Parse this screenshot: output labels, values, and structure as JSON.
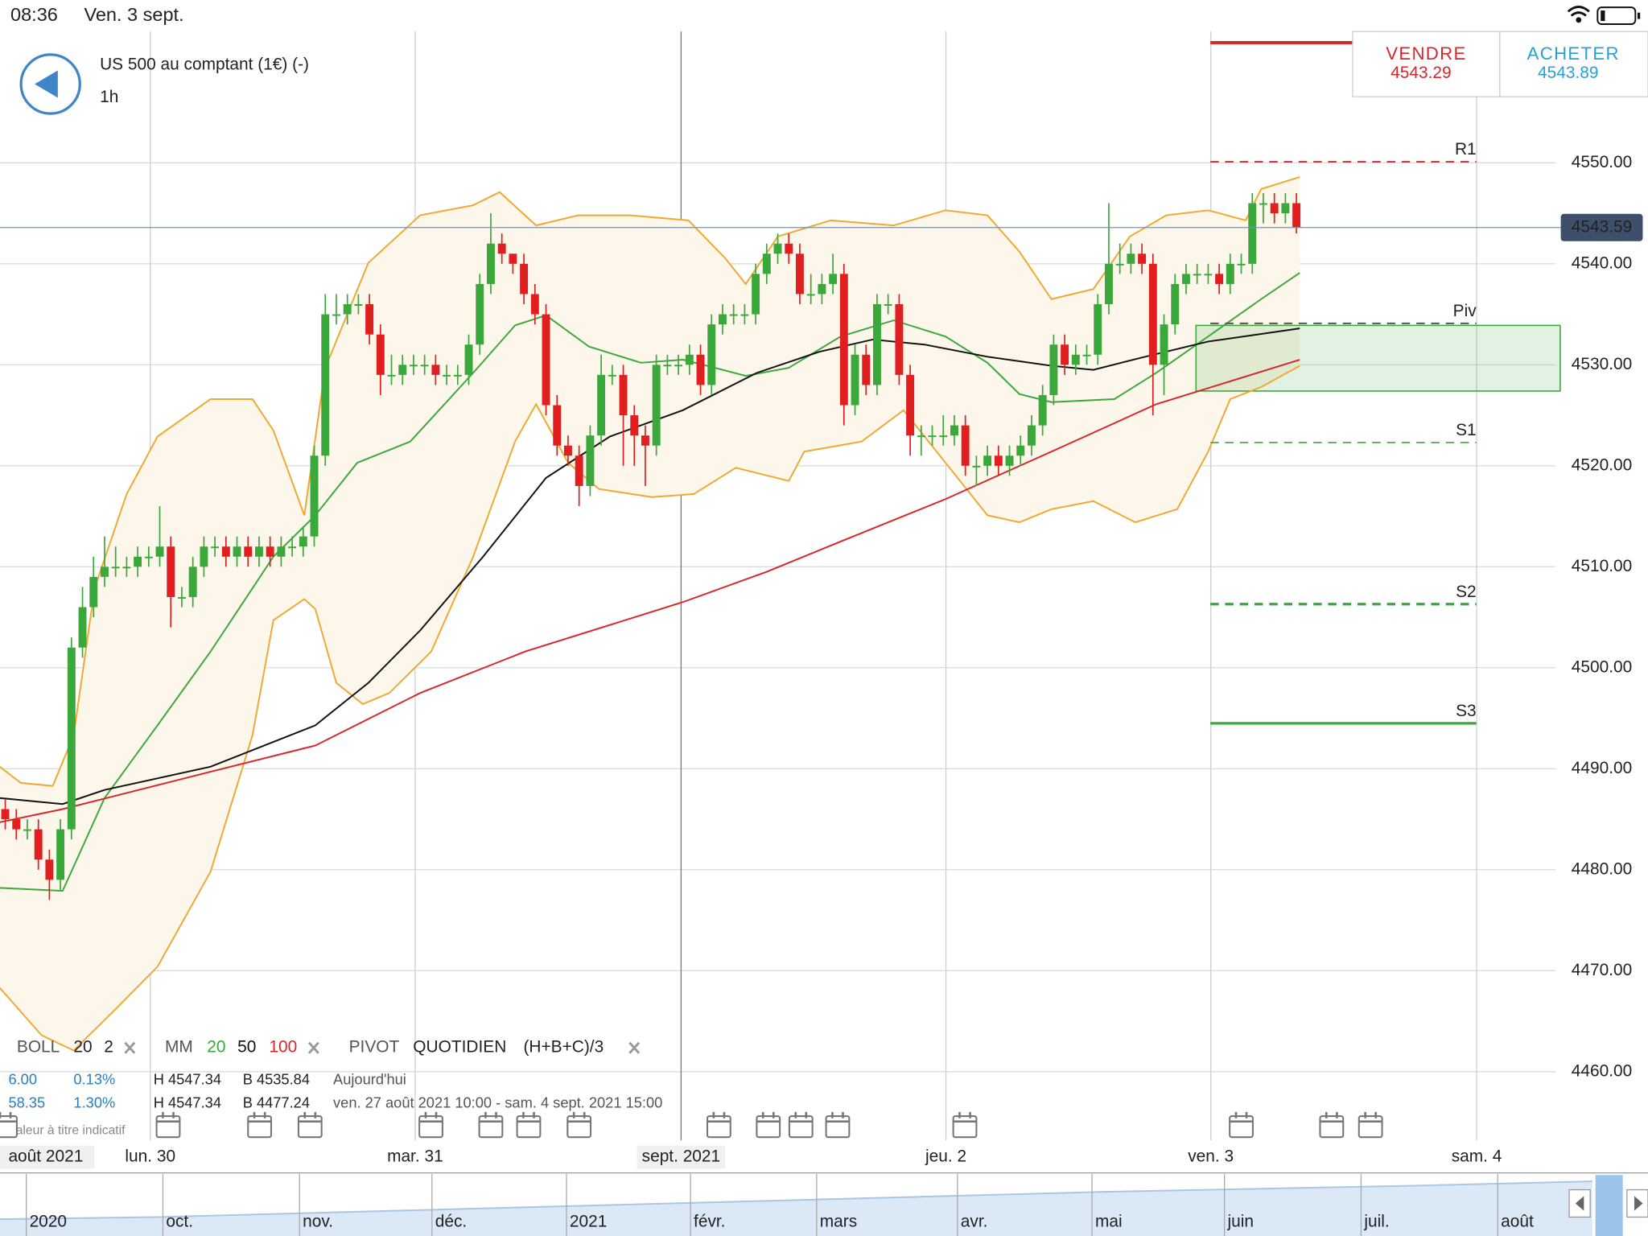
{
  "status_bar": {
    "time": "08:36",
    "date": "Ven. 3 sept."
  },
  "header": {
    "instrument": "US 500 au comptant (1€) (-)",
    "timeframe": "1h"
  },
  "quote": {
    "sell_label": "VENDRE",
    "sell_price": "4543.29",
    "buy_label": "ACHETER",
    "buy_price": "4543.89"
  },
  "chart_data": {
    "type": "candlestick",
    "x_start_label": "août 2021",
    "xlim": [
      -0.476,
      148.857
    ],
    "ylim": [
      4453.2,
      4563.0
    ],
    "grid": true,
    "yticks": [
      {
        "value": 4460,
        "label": "4460.00"
      },
      {
        "value": 4470,
        "label": "4470.00"
      },
      {
        "value": 4480,
        "label": "4480.00"
      },
      {
        "value": 4490,
        "label": "4490.00"
      },
      {
        "value": 4500,
        "label": "4500.00"
      },
      {
        "value": 4510,
        "label": "4510.00"
      },
      {
        "value": 4520,
        "label": "4520.00"
      },
      {
        "value": 4530,
        "label": "4530.00"
      },
      {
        "value": 4540,
        "label": "4540.00"
      },
      {
        "value": 4550,
        "label": "4550.00"
      }
    ],
    "xticks": [
      {
        "value": 13.14,
        "label": "lun. 30"
      },
      {
        "value": 37.14,
        "label": "mar. 31"
      },
      {
        "value": 61.24,
        "label": "sept. 2021"
      },
      {
        "value": 85.24,
        "label": "jeu. 2"
      },
      {
        "value": 109.24,
        "label": "ven. 3"
      },
      {
        "value": 133.33,
        "label": "sam. 4"
      }
    ],
    "up_color": "#3aa83a",
    "down_color": "#e02020",
    "open": [
      4486,
      4485,
      4484,
      4484,
      4481,
      4479,
      4484,
      4502,
      4506,
      4509,
      4510,
      4510,
      4510,
      4511,
      4511,
      4512,
      4507,
      4507,
      4510,
      4512,
      4512,
      4511,
      4512,
      4511,
      4512,
      4511,
      4512,
      4512,
      4513,
      4521,
      4535,
      4535,
      4536,
      4536,
      4533,
      4529,
      4529,
      4530,
      4530,
      4530,
      4529,
      4529,
      4529,
      4532,
      4538,
      4542,
      4541,
      4540,
      4537,
      4535,
      4526,
      4522,
      4521,
      4518,
      4523,
      4529,
      4529,
      4525,
      4523,
      4522,
      4530,
      4530,
      4530,
      4531,
      4528,
      4534,
      4535,
      4535,
      4535,
      4539,
      4541,
      4542,
      4541,
      4537,
      4537,
      4538,
      4539,
      4526,
      4531,
      4528,
      4536,
      4536,
      4529,
      4523,
      4523,
      4523,
      4523,
      4524,
      4520,
      4520,
      4521,
      4520,
      4521,
      4522,
      4524,
      4527,
      4532,
      4530,
      4531,
      4531,
      4536,
      4540,
      4540,
      4541,
      4540,
      4530,
      4534,
      4538,
      4539,
      4539,
      4539,
      4538,
      4540,
      4540,
      4546,
      4546,
      4545,
      4546
    ],
    "high": [
      4487,
      4486,
      4485,
      4485,
      4482,
      4485,
      4503,
      4508,
      4511,
      4513,
      4512,
      4511,
      4512,
      4512,
      4516,
      4513,
      4508,
      4511,
      4513,
      4513,
      4513,
      4513,
      4513,
      4513,
      4513,
      4513,
      4513,
      4514,
      4522,
      4537,
      4537,
      4537,
      4537,
      4537,
      4534,
      4531,
      4531,
      4531,
      4531,
      4531,
      4530,
      4530,
      4533,
      4539,
      4545,
      4543,
      4541,
      4541,
      4538,
      4536,
      4527,
      4523,
      4522,
      4524,
      4531,
      4530,
      4530,
      4526,
      4524,
      4531,
      4531,
      4531,
      4532,
      4532,
      4535,
      4536,
      4536,
      4536,
      4540,
      4542,
      4543,
      4543,
      4542,
      4539,
      4539,
      4541,
      4540,
      4532,
      4532,
      4537,
      4537,
      4537,
      4530,
      4524,
      4524,
      4525,
      4525,
      4525,
      4521,
      4522,
      4522,
      4522,
      4523,
      4525,
      4528,
      4533,
      4533,
      4532,
      4532,
      4537,
      4546,
      4542,
      4542,
      4542,
      4541,
      4535,
      4539,
      4540,
      4540,
      4540,
      4540,
      4541,
      4541,
      4547,
      4547,
      4547,
      4547,
      4547
    ],
    "low": [
      4484,
      4483,
      4483,
      4480,
      4477,
      4478,
      4483,
      4501,
      4505,
      4508,
      4509,
      4509,
      4509,
      4510,
      4510,
      4504,
      4506,
      4506,
      4509,
      4511,
      4510,
      4510,
      4510,
      4510,
      4510,
      4510,
      4511,
      4511,
      4512,
      4520,
      4534,
      4534,
      4535,
      4532,
      4527,
      4528,
      4528,
      4529,
      4529,
      4528,
      4528,
      4528,
      4528,
      4531,
      4537,
      4540,
      4539,
      4536,
      4534,
      4525,
      4521,
      4520,
      4516,
      4517,
      4522,
      4528,
      4520,
      4520,
      4518,
      4521,
      4529,
      4529,
      4529,
      4527,
      4527,
      4533,
      4534,
      4534,
      4534,
      4538,
      4540,
      4540,
      4536,
      4536,
      4536,
      4537,
      4524,
      4525,
      4527,
      4527,
      4535,
      4528,
      4521,
      4521,
      4522,
      4522,
      4522,
      4519,
      4518,
      4519,
      4519,
      4519,
      4520,
      4521,
      4523,
      4526,
      4529,
      4529,
      4530,
      4530,
      4535,
      4539,
      4539,
      4539,
      4525,
      4527,
      4533,
      4537,
      4538,
      4538,
      4537,
      4537,
      4539,
      4539,
      4544,
      4544,
      4544,
      4543
    ],
    "close": [
      4485,
      4484,
      4484,
      4481,
      4479,
      4484,
      4502,
      4506,
      4509,
      4510,
      4510,
      4510,
      4511,
      4511,
      4512,
      4507,
      4507,
      4510,
      4512,
      4512,
      4511,
      4512,
      4511,
      4512,
      4511,
      4512,
      4512,
      4513,
      4521,
      4535,
      4535,
      4536,
      4536,
      4533,
      4529,
      4529,
      4530,
      4530,
      4530,
      4529,
      4529,
      4529,
      4532,
      4538,
      4542,
      4541,
      4540,
      4537,
      4535,
      4526,
      4522,
      4521,
      4518,
      4523,
      4529,
      4529,
      4525,
      4523,
      4522,
      4530,
      4530,
      4530,
      4531,
      4528,
      4534,
      4535,
      4535,
      4535,
      4539,
      4541,
      4542,
      4541,
      4537,
      4537,
      4538,
      4539,
      4526,
      4531,
      4528,
      4536,
      4536,
      4529,
      4523,
      4523,
      4523,
      4523,
      4524,
      4520,
      4520,
      4521,
      4520,
      4521,
      4522,
      4524,
      4527,
      4532,
      4530,
      4531,
      4531,
      4536,
      4540,
      4540,
      4541,
      4540,
      4530,
      4534,
      4538,
      4539,
      4539,
      4539,
      4538,
      4540,
      4540,
      4546,
      4546,
      4545,
      4546,
      4543.59
    ],
    "bollinger": {
      "color": "#f0a830",
      "fill": "#fdf6ea",
      "upper": {
        "x": [
          -0.5,
          1.4,
          4.3,
          6.2,
          8.1,
          11,
          13.8,
          18.6,
          22.4,
          24.3,
          27.1,
          29,
          32.9,
          37.6,
          42.4,
          44.8,
          48.1,
          51.9,
          56.7,
          61.9,
          65.2,
          67.1,
          70,
          74.8,
          80.5,
          85.2,
          89,
          91.9,
          94.8,
          98.6,
          101.9,
          105.2,
          109,
          112.4,
          113.8,
          117.3
        ],
        "values": [
          4490.2,
          4488.6,
          4488.3,
          4493.3,
          4507.9,
          4517.2,
          4522.9,
          4526.6,
          4526.6,
          4523.5,
          4515.1,
          4529.7,
          4540.1,
          4544.8,
          4545.8,
          4547.1,
          4543.8,
          4544.8,
          4544.8,
          4544.3,
          4540.6,
          4538,
          4542.7,
          4544.3,
          4543.8,
          4545.3,
          4544.8,
          4541.2,
          4536.5,
          4537.5,
          4542.7,
          4544.8,
          4545.3,
          4544.3,
          4547.4,
          4548.6
        ]
      },
      "lower": {
        "x": [
          -0.5,
          3.3,
          6.2,
          10,
          13.8,
          18.6,
          22.4,
          24.3,
          27.1,
          28.1,
          30,
          32.4,
          34.8,
          38.6,
          42.4,
          46.2,
          48.1,
          51,
          53.8,
          58.6,
          62.4,
          66.2,
          71,
          72.4,
          77.6,
          81.4,
          85.2,
          89,
          91.9,
          94.8,
          98.6,
          102.4,
          106.2,
          109,
          111,
          113.8,
          117.3
        ],
        "values": [
          4468.3,
          4463.6,
          4462.1,
          4466.2,
          4470.4,
          4479.8,
          4493.3,
          4504.7,
          4506.8,
          4505.8,
          4498.5,
          4496.4,
          4497.5,
          4501.6,
          4511,
          4522.4,
          4526.1,
          4520.3,
          4517.7,
          4516.9,
          4517.2,
          4519.8,
          4518.5,
          4521.4,
          4522.4,
          4525.5,
          4520.3,
          4515.1,
          4514.4,
          4515.7,
          4516.5,
          4514.4,
          4515.7,
          4521.4,
          4526.6,
          4527.8,
          4529.9
        ]
      }
    },
    "series": [
      {
        "color": "#3aa83a",
        "x": [
          -0.5,
          5.2,
          9,
          13.8,
          18.6,
          24.3,
          28.1,
          31.9,
          36.7,
          42.4,
          46.2,
          49,
          52.9,
          57.6,
          61.4,
          64.3,
          67.1,
          71,
          75.7,
          80.5,
          85.2,
          89,
          91.9,
          94.8,
          100.5,
          104.3,
          109,
          113.8,
          117.3
        ],
        "values": [
          4478.2,
          4477.9,
          4487.1,
          4494.3,
          4501.6,
          4511,
          4515.1,
          4520.3,
          4522.4,
          4529.2,
          4533.9,
          4534.9,
          4531.8,
          4530.2,
          4530.5,
          4529.7,
          4528.9,
          4529.7,
          4532.8,
          4534.4,
          4532.8,
          4530.2,
          4527.1,
          4526.3,
          4526.6,
          4529.2,
          4532.8,
          4536.5,
          4539.1
        ]
      },
      {
        "color": "#111111",
        "x": [
          -0.5,
          5.2,
          9,
          18.6,
          28.1,
          32.9,
          37.6,
          43.3,
          49,
          54.8,
          61.4,
          68.1,
          73.8,
          78.6,
          83.3,
          89,
          94.8,
          98.6,
          103.3,
          109,
          117.3
        ],
        "values": [
          4487.1,
          4486.5,
          4487.9,
          4490.2,
          4494.3,
          4498.5,
          4503.7,
          4511,
          4518.8,
          4522.9,
          4525.5,
          4529.2,
          4531.3,
          4532.5,
          4532,
          4530.8,
          4529.9,
          4529.5,
          4530.8,
          4532.3,
          4533.6
        ]
      },
      {
        "color": "#d8262b",
        "x": [
          -0.5,
          5.2,
          18.6,
          28.1,
          37.6,
          47.1,
          61.4,
          69,
          75.7,
          85.2,
          94.8,
          104.3,
          117.3
        ],
        "values": [
          4484.7,
          4486,
          4489.7,
          4492.3,
          4497.5,
          4501.6,
          4506.5,
          4509.5,
          4512.5,
          4516.7,
          4521.4,
          4526.1,
          4530.5
        ]
      }
    ],
    "pivot_x": [
      109.2,
      133.3
    ],
    "pivots": [
      {
        "value": 4561.9,
        "color": "#d8262b",
        "style": "solid",
        "width": 3
      },
      {
        "name": "R1",
        "value": 4550.1,
        "color": "#d8262b",
        "style": "dashed",
        "width": 1.5
      },
      {
        "name": "Piv",
        "value": 4534.1,
        "color": "#555555",
        "style": "dashed",
        "width": 1.5
      },
      {
        "name": "S1",
        "value": 4522.3,
        "color": "#3aa83a",
        "style": "dashed",
        "width": 1.2
      },
      {
        "name": "S2",
        "value": 4506.3,
        "color": "#3aa83a",
        "style": "dashed",
        "width": 2.5
      },
      {
        "name": "S3",
        "value": 4494.5,
        "color": "#3aa83a",
        "style": "solid",
        "width": 2.5
      }
    ],
    "zone": {
      "x": [
        107.9,
        140.9
      ],
      "y": [
        4527.4,
        4533.9
      ],
      "color": "#3aa83a"
    },
    "last_price": 4543.59
  },
  "indicators": {
    "boll": {
      "label": "BOLL",
      "period": "20",
      "deviation": "2"
    },
    "mm": {
      "label": "MM",
      "periods": [
        "20",
        "50",
        "100"
      ]
    },
    "pivot": {
      "label": "PIVOT",
      "period": "QUOTIDIEN",
      "formula": "(H+B+C)/3"
    }
  },
  "stats": [
    {
      "change": "6.00",
      "change_pct": "0.13%",
      "high": "H 4547.34",
      "low": "B 4535.84",
      "range": "Aujourd'hui"
    },
    {
      "change": "58.35",
      "change_pct": "1.30%",
      "high": "H 4547.34",
      "low": "B 4477.24",
      "range": "ven. 27 août 2021 10:00 - sam. 4 sept. 2021 15:00"
    }
  ],
  "disclaimer": "Valeur à titre indicatif",
  "navigator": {
    "labels": [
      "2020",
      "oct.",
      "nov.",
      "déc.",
      "2021",
      "févr.",
      "mars",
      "avr.",
      "mai",
      "juin",
      "juil.",
      "août"
    ]
  }
}
